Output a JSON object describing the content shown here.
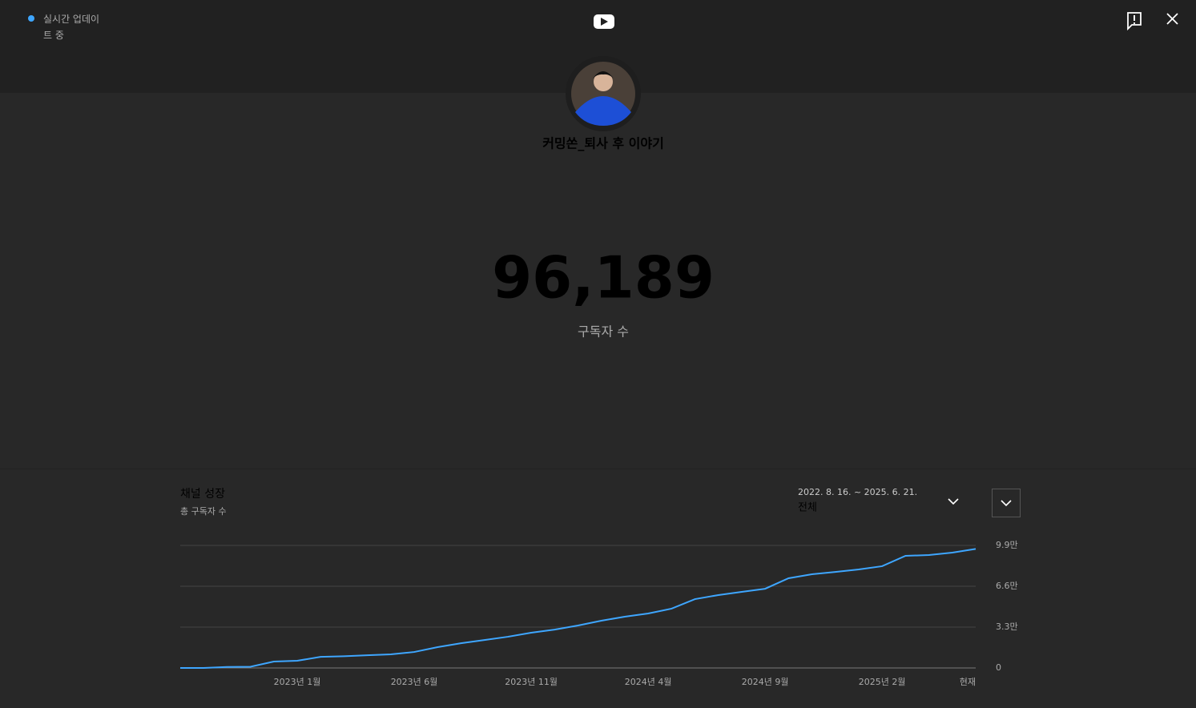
{
  "header": {
    "live_status": "실시간 업데이트 중"
  },
  "channel": {
    "name": "커밍쏜_퇴사 후 이야기"
  },
  "counter": {
    "count": "96,189",
    "label": "구독자 수"
  },
  "controls": {
    "date_range": "2022. 8. 16. ~ 2025. 6. 21.",
    "period": "전체"
  },
  "chart_data": {
    "type": "line",
    "title": "채널 성장",
    "subtitle": "총 구독자 수",
    "categories": [
      null,
      null,
      null,
      null,
      null,
      "2023년 1월",
      null,
      null,
      null,
      null,
      "2023년 6월",
      null,
      null,
      null,
      null,
      "2023년 11월",
      null,
      null,
      null,
      null,
      "2024년 4월",
      null,
      null,
      null,
      null,
      "2024년 9월",
      null,
      null,
      null,
      null,
      "2025년 2월",
      null,
      null,
      null,
      "현재"
    ],
    "values": [
      0,
      0,
      800,
      1000,
      5200,
      5800,
      9000,
      9500,
      10300,
      11000,
      12900,
      16800,
      20000,
      22600,
      25200,
      28500,
      31000,
      34300,
      38200,
      41400,
      44000,
      47900,
      55600,
      58900,
      61500,
      64000,
      72500,
      75700,
      77600,
      79600,
      82200,
      90600,
      91200,
      93200,
      96189
    ],
    "color": "#3ea6ff",
    "ylim": [
      0,
      99000
    ],
    "yticks": [
      0,
      {
        "value": 33000,
        "label": "3.3만"
      },
      {
        "value": 66000,
        "label": "6.6만"
      },
      {
        "value": 99000,
        "label": "9.9만"
      }
    ],
    "grid": true
  }
}
